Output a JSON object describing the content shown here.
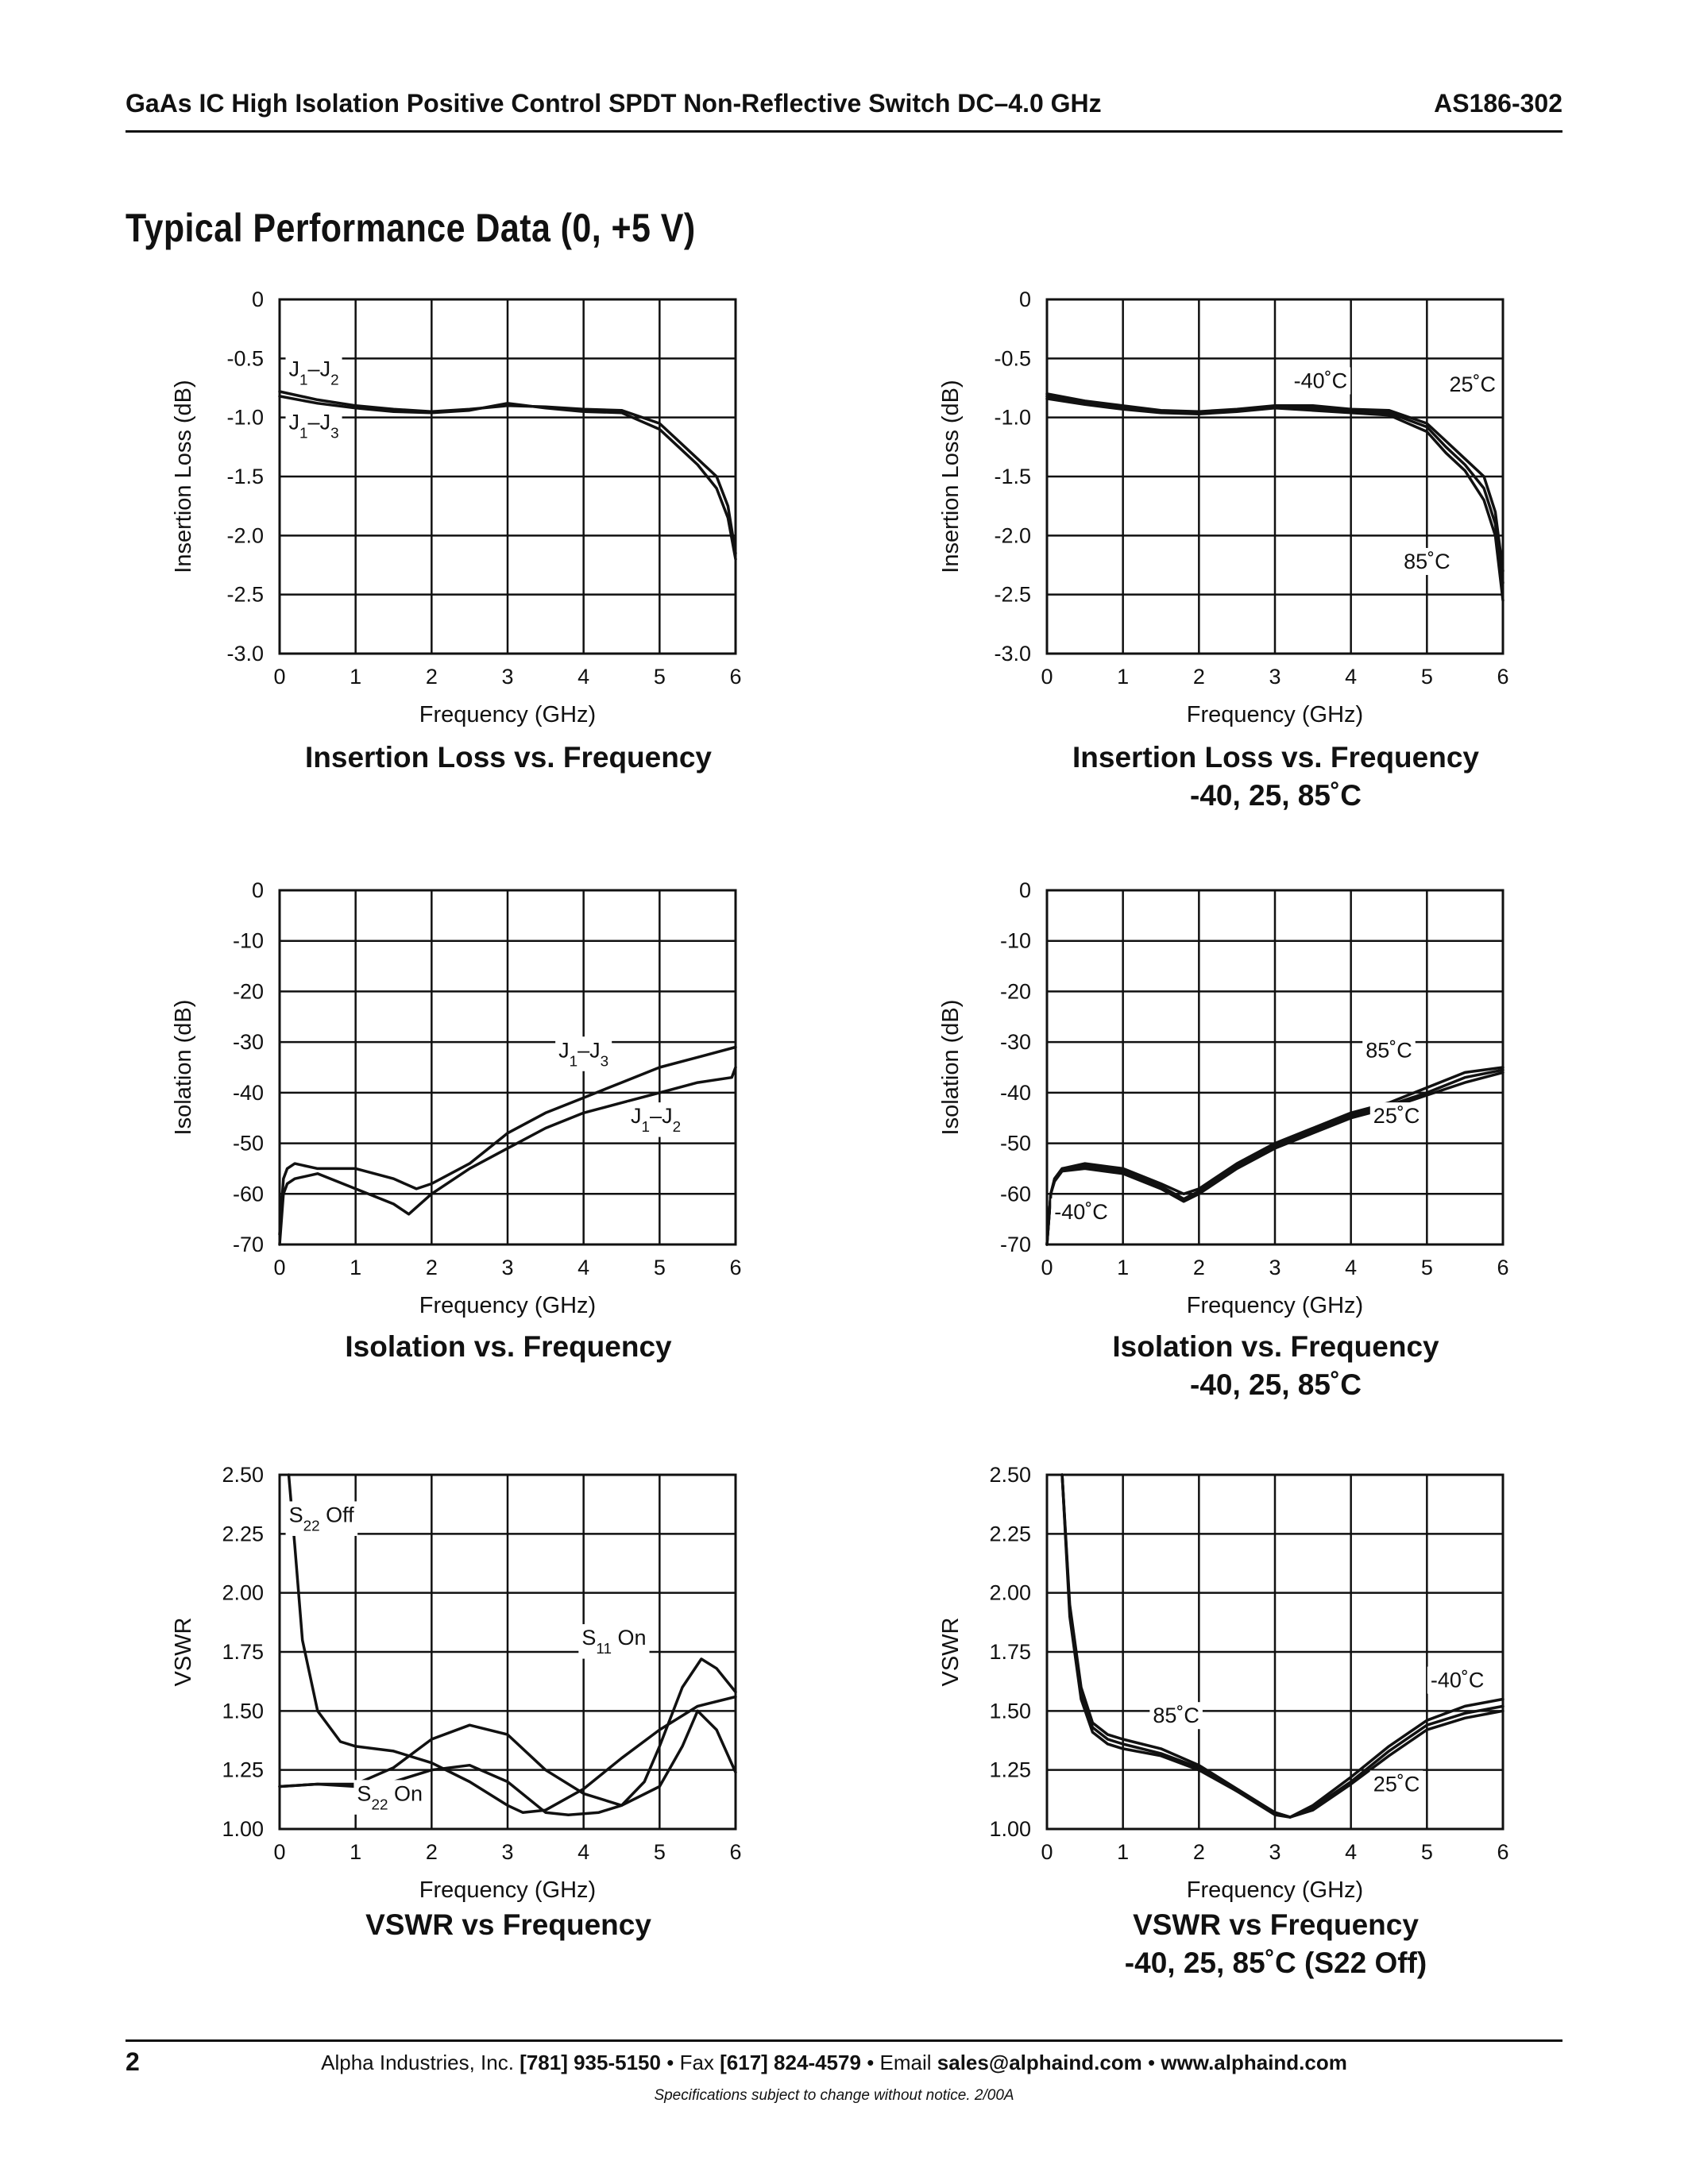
{
  "header": {
    "title": "GaAs IC High Isolation Positive Control SPDT Non-Reflective Switch DC–4.0 GHz",
    "part_number": "AS186-302"
  },
  "section_title": "Typical Performance Data (0, +5 V)",
  "captions": {
    "c1": "Insertion Loss vs. Frequency",
    "c2a": "Insertion Loss vs. Frequency",
    "c2b": "-40, 25, 85˚C",
    "c3": "Isolation vs. Frequency",
    "c4a": "Isolation vs. Frequency",
    "c4b": "-40, 25, 85˚C",
    "c5": "VSWR vs Frequency",
    "c6a": "VSWR vs Frequency",
    "c6b": "-40, 25, 85˚C (S22 Off)"
  },
  "footer": {
    "page_number": "2",
    "company": "Alpha Industries, Inc.",
    "phone": "[781] 935-5150",
    "fax_label": "Fax",
    "fax": "[617] 824-4579",
    "email_label": "Email",
    "email": "sales@alphaind.com",
    "website": "www.alphaind.com",
    "bullet": "•",
    "note": "Specifications subject to change without notice.  2/00A"
  },
  "chart_data": [
    {
      "type": "line",
      "ylabel": "Insertion Loss (dB)",
      "xlabel": "Frequency (GHz)",
      "xlim": [
        0,
        6
      ],
      "ylim": [
        -3.0,
        0
      ],
      "xticks": [
        "0",
        "1",
        "2",
        "3",
        "4",
        "5",
        "6"
      ],
      "yticks": [
        "0",
        "-0.5",
        "-1.0",
        "-1.5",
        "-2.0",
        "-2.5",
        "-3.0"
      ],
      "grid": true,
      "series": [
        {
          "name": "J1–J2",
          "x": [
            0,
            0.5,
            1,
            1.5,
            2,
            2.5,
            3,
            3.5,
            4,
            4.5,
            5,
            5.25,
            5.5,
            5.75,
            5.9,
            6
          ],
          "y": [
            -0.78,
            -0.85,
            -0.9,
            -0.93,
            -0.95,
            -0.93,
            -0.9,
            -0.91,
            -0.93,
            -0.94,
            -1.05,
            -1.2,
            -1.35,
            -1.5,
            -1.75,
            -2.15
          ]
        },
        {
          "name": "J1–J3",
          "x": [
            0,
            0.5,
            1,
            1.5,
            2,
            2.5,
            3,
            3.5,
            4,
            4.5,
            5,
            5.25,
            5.5,
            5.75,
            5.9,
            6
          ],
          "y": [
            -0.82,
            -0.88,
            -0.92,
            -0.95,
            -0.96,
            -0.94,
            -0.88,
            -0.92,
            -0.95,
            -0.96,
            -1.1,
            -1.25,
            -1.4,
            -1.6,
            -1.85,
            -2.2
          ]
        }
      ],
      "annotations": [
        {
          "text": "J1–J2",
          "x": 0.45,
          "y": -0.65
        },
        {
          "text": "J1–J3",
          "x": 0.45,
          "y": -1.1
        }
      ]
    },
    {
      "type": "line",
      "ylabel": "Insertion Loss (dB)",
      "xlabel": "Frequency (GHz)",
      "xlim": [
        0,
        6
      ],
      "ylim": [
        -3.0,
        0
      ],
      "xticks": [
        "0",
        "1",
        "2",
        "3",
        "4",
        "5",
        "6"
      ],
      "yticks": [
        "0",
        "-0.5",
        "-1.0",
        "-1.5",
        "-2.0",
        "-2.5",
        "-3.0"
      ],
      "grid": true,
      "series": [
        {
          "name": "-40˚C",
          "x": [
            0,
            0.5,
            1,
            1.5,
            2,
            2.5,
            3,
            3.5,
            4,
            4.5,
            5,
            5.25,
            5.5,
            5.75,
            5.9,
            6
          ],
          "y": [
            -0.8,
            -0.86,
            -0.9,
            -0.94,
            -0.95,
            -0.93,
            -0.9,
            -0.9,
            -0.93,
            -0.94,
            -1.05,
            -1.2,
            -1.35,
            -1.5,
            -1.8,
            -2.3
          ]
        },
        {
          "name": "25˚C",
          "x": [
            0,
            0.5,
            1,
            1.5,
            2,
            2.5,
            3,
            3.5,
            4,
            4.5,
            5,
            5.25,
            5.5,
            5.75,
            5.9,
            6
          ],
          "y": [
            -0.82,
            -0.87,
            -0.91,
            -0.95,
            -0.96,
            -0.94,
            -0.91,
            -0.92,
            -0.95,
            -0.96,
            -1.08,
            -1.25,
            -1.4,
            -1.6,
            -1.9,
            -2.4
          ]
        },
        {
          "name": "85˚C",
          "x": [
            0,
            0.5,
            1,
            1.5,
            2,
            2.5,
            3,
            3.5,
            4,
            4.5,
            5,
            5.25,
            5.5,
            5.75,
            5.9,
            6
          ],
          "y": [
            -0.84,
            -0.89,
            -0.93,
            -0.96,
            -0.97,
            -0.95,
            -0.92,
            -0.94,
            -0.96,
            -0.98,
            -1.12,
            -1.3,
            -1.45,
            -1.7,
            -2.0,
            -2.55
          ]
        }
      ],
      "annotations": [
        {
          "text": "-40˚C",
          "x": 3.6,
          "y": -0.75
        },
        {
          "text": "25˚C",
          "x": 5.6,
          "y": -0.78
        },
        {
          "text": "85˚C",
          "x": 5.0,
          "y": -2.28
        }
      ]
    },
    {
      "type": "line",
      "ylabel": "Isolation (dB)",
      "xlabel": "Frequency (GHz)",
      "xlim": [
        0,
        6
      ],
      "ylim": [
        -70,
        0
      ],
      "xticks": [
        "0",
        "1",
        "2",
        "3",
        "4",
        "5",
        "6"
      ],
      "yticks": [
        "0",
        "-10",
        "-20",
        "-30",
        "-40",
        "-50",
        "-60",
        "-70"
      ],
      "grid": true,
      "series": [
        {
          "name": "J1–J3",
          "x": [
            0,
            0.05,
            0.1,
            0.2,
            0.5,
            1,
            1.5,
            1.8,
            2,
            2.5,
            3,
            3.5,
            4,
            4.5,
            5,
            5.5,
            6
          ],
          "y": [
            -68,
            -57,
            -55,
            -54,
            -55,
            -55,
            -57,
            -59,
            -58,
            -54,
            -48,
            -44,
            -41,
            -38,
            -35,
            -33,
            -31
          ]
        },
        {
          "name": "J1–J2",
          "x": [
            0,
            0.05,
            0.1,
            0.2,
            0.5,
            1,
            1.5,
            1.7,
            2,
            2.5,
            3,
            3.5,
            4,
            4.5,
            5,
            5.5,
            5.95,
            6
          ],
          "y": [
            -70,
            -60,
            -58,
            -57,
            -56,
            -59,
            -62,
            -64,
            -60,
            -55,
            -51,
            -47,
            -44,
            -42,
            -40,
            -38,
            -37,
            -35
          ]
        }
      ],
      "annotations": [
        {
          "text": "J1–J3",
          "x": 4.0,
          "y": -33
        },
        {
          "text": "J1–J2",
          "x": 4.95,
          "y": -46
        }
      ]
    },
    {
      "type": "line",
      "ylabel": "Isolation (dB)",
      "xlabel": "Frequency (GHz)",
      "xlim": [
        0,
        6
      ],
      "ylim": [
        -70,
        0
      ],
      "xticks": [
        "0",
        "1",
        "2",
        "3",
        "4",
        "5",
        "6"
      ],
      "yticks": [
        "0",
        "-10",
        "-20",
        "-30",
        "-40",
        "-50",
        "-60",
        "-70"
      ],
      "grid": true,
      "series": [
        {
          "name": "85˚C",
          "x": [
            0,
            0.05,
            0.1,
            0.2,
            0.5,
            1,
            1.5,
            1.8,
            2,
            2.5,
            3,
            3.5,
            4,
            4.5,
            5,
            5.5,
            6
          ],
          "y": [
            -70,
            -60,
            -57,
            -55,
            -54,
            -55,
            -58,
            -60,
            -59,
            -54,
            -50,
            -47,
            -44,
            -42,
            -39,
            -36,
            -35
          ]
        },
        {
          "name": "25˚C",
          "x": [
            0,
            0.05,
            0.1,
            0.2,
            0.5,
            1,
            1.5,
            1.8,
            2,
            2.5,
            3,
            3.5,
            4,
            4.5,
            5,
            5.5,
            6
          ],
          "y": [
            -70,
            -60,
            -57,
            -55,
            -54.5,
            -55.5,
            -58.5,
            -61,
            -59.5,
            -54.5,
            -50.5,
            -47.5,
            -44.5,
            -42.5,
            -40,
            -37,
            -35.5
          ]
        },
        {
          "name": "-40˚C",
          "x": [
            0,
            0.05,
            0.1,
            0.2,
            0.5,
            1,
            1.5,
            1.8,
            2,
            2.5,
            3,
            3.5,
            4,
            4.5,
            5,
            5.5,
            6
          ],
          "y": [
            -70,
            -60,
            -57.5,
            -55.5,
            -55,
            -56,
            -59,
            -61.5,
            -60,
            -55,
            -51,
            -48,
            -45,
            -43,
            -40.5,
            -38,
            -36
          ]
        }
      ],
      "annotations": [
        {
          "text": "85˚C",
          "x": 4.5,
          "y": -33
        },
        {
          "text": "25˚C",
          "x": 4.6,
          "y": -46
        },
        {
          "text": "-40˚C",
          "x": 0.45,
          "y": -65
        }
      ]
    },
    {
      "type": "line",
      "ylabel": "VSWR",
      "xlabel": "Frequency (GHz)",
      "xlim": [
        0,
        6
      ],
      "ylim": [
        1.0,
        2.5
      ],
      "xticks": [
        "0",
        "1",
        "2",
        "3",
        "4",
        "5",
        "6"
      ],
      "yticks": [
        "2.50",
        "2.25",
        "2.00",
        "1.75",
        "1.50",
        "1.25",
        "1.00"
      ],
      "grid": true,
      "series": [
        {
          "name": "S22 Off",
          "x": [
            0.12,
            0.2,
            0.3,
            0.5,
            0.8,
            1,
            1.5,
            2,
            2.5,
            3,
            3.2,
            3.5,
            4,
            4.5,
            5,
            5.5,
            6
          ],
          "y": [
            2.5,
            2.2,
            1.8,
            1.5,
            1.37,
            1.35,
            1.33,
            1.28,
            1.2,
            1.1,
            1.07,
            1.08,
            1.17,
            1.3,
            1.42,
            1.52,
            1.56
          ]
        },
        {
          "name": "S11 On",
          "x": [
            0,
            0.5,
            1,
            1.5,
            2,
            2.5,
            3,
            3.5,
            3.8,
            4.2,
            4.5,
            4.8,
            5,
            5.3,
            5.55,
            5.75,
            6
          ],
          "y": [
            1.18,
            1.19,
            1.18,
            1.2,
            1.25,
            1.27,
            1.2,
            1.07,
            1.06,
            1.07,
            1.1,
            1.2,
            1.35,
            1.6,
            1.72,
            1.68,
            1.58
          ]
        },
        {
          "name": "S22 On",
          "x": [
            0,
            0.5,
            1,
            1.5,
            2,
            2.5,
            3,
            3.5,
            4,
            4.5,
            5,
            5.3,
            5.5,
            5.75,
            6
          ],
          "y": [
            1.18,
            1.19,
            1.19,
            1.26,
            1.38,
            1.44,
            1.4,
            1.25,
            1.15,
            1.1,
            1.18,
            1.35,
            1.5,
            1.42,
            1.24
          ]
        }
      ],
      "annotations": [
        {
          "text": "S22 Off",
          "x": 0.55,
          "y": 2.3
        },
        {
          "text": "S11 On",
          "x": 4.4,
          "y": 1.78
        },
        {
          "text": "S22 On",
          "x": 1.45,
          "y": 1.12
        }
      ]
    },
    {
      "type": "line",
      "ylabel": "VSWR",
      "xlabel": "Frequency (GHz)",
      "xlim": [
        0,
        6
      ],
      "ylim": [
        1.0,
        2.5
      ],
      "xticks": [
        "0",
        "1",
        "2",
        "3",
        "4",
        "5",
        "6"
      ],
      "yticks": [
        "2.50",
        "2.25",
        "2.00",
        "1.75",
        "1.50",
        "1.25",
        "1.00"
      ],
      "grid": true,
      "series": [
        {
          "name": "-40˚C",
          "x": [
            0.2,
            0.3,
            0.45,
            0.6,
            0.8,
            1,
            1.5,
            2,
            2.5,
            3,
            3.2,
            3.5,
            4,
            4.5,
            5,
            5.5,
            6
          ],
          "y": [
            2.5,
            1.95,
            1.6,
            1.45,
            1.4,
            1.38,
            1.34,
            1.27,
            1.17,
            1.07,
            1.05,
            1.1,
            1.22,
            1.35,
            1.46,
            1.52,
            1.55
          ]
        },
        {
          "name": "25˚C",
          "x": [
            0.2,
            0.3,
            0.45,
            0.6,
            0.8,
            1,
            1.5,
            2,
            2.5,
            3,
            3.2,
            3.5,
            4,
            4.5,
            5,
            5.5,
            6
          ],
          "y": [
            2.5,
            1.93,
            1.58,
            1.43,
            1.38,
            1.36,
            1.32,
            1.26,
            1.16,
            1.07,
            1.05,
            1.09,
            1.2,
            1.33,
            1.44,
            1.49,
            1.52
          ]
        },
        {
          "name": "85˚C",
          "x": [
            0.2,
            0.3,
            0.45,
            0.6,
            0.8,
            1,
            1.5,
            2,
            2.5,
            3,
            3.2,
            3.5,
            4,
            4.5,
            5,
            5.5,
            6
          ],
          "y": [
            2.5,
            1.9,
            1.55,
            1.41,
            1.36,
            1.34,
            1.31,
            1.25,
            1.16,
            1.06,
            1.05,
            1.08,
            1.19,
            1.31,
            1.42,
            1.47,
            1.5
          ]
        }
      ],
      "annotations": [
        {
          "text": "85˚C",
          "x": 1.7,
          "y": 1.45
        },
        {
          "text": "-40˚C",
          "x": 5.4,
          "y": 1.6
        },
        {
          "text": "25˚C",
          "x": 4.6,
          "y": 1.16
        }
      ]
    }
  ]
}
